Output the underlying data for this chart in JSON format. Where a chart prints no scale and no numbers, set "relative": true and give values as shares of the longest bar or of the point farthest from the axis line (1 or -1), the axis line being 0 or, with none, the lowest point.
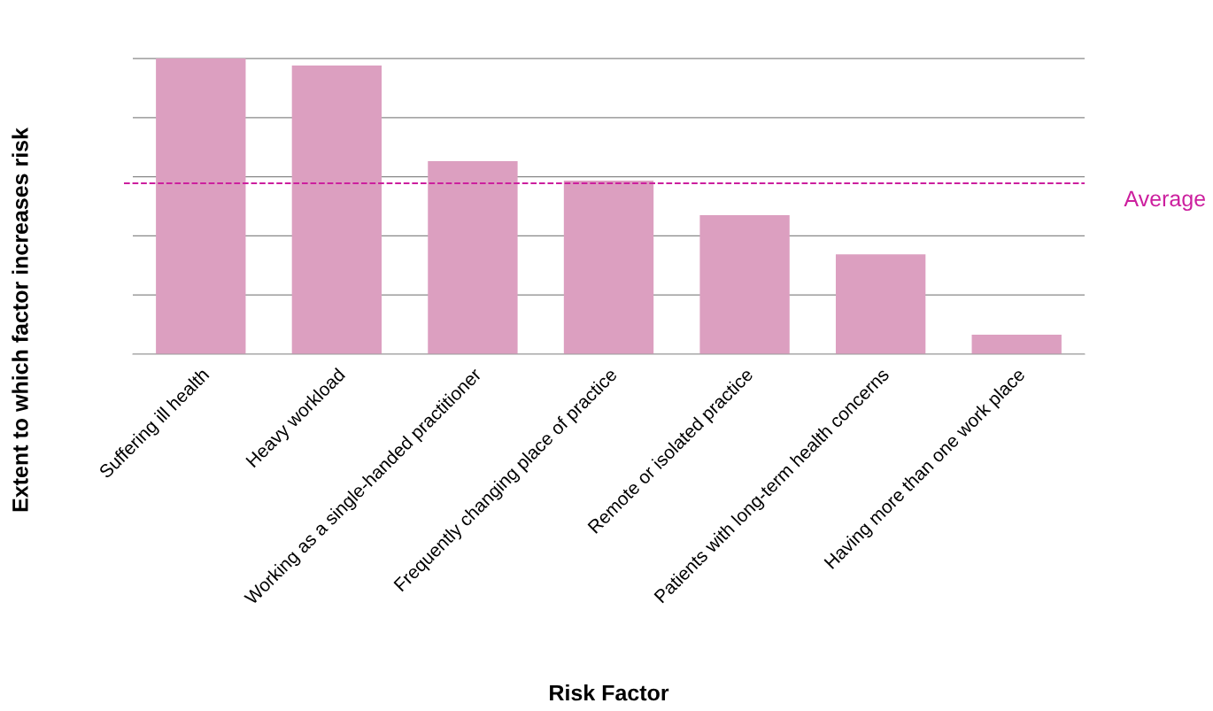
{
  "chart_data": {
    "type": "bar",
    "relative": true,
    "xlabel": "Risk Factor",
    "ylabel": "Extent to which factor increases risk",
    "categories": [
      "Suffering ill health",
      "Heavy workload",
      "Working as a single-handed practitioner",
      "Frequently changing place of practice",
      "Remote or isolated practice",
      "Patients with long-term health concerns",
      "Having more than one work place"
    ],
    "values": [
      1,
      0.976,
      0.653,
      0.587,
      0.47,
      0.338,
      0.066
    ],
    "color": "#dc9fc0",
    "grid": "y",
    "ref_lines": [
      {
        "axis": "y",
        "value": 0.578,
        "label": "Average",
        "color": "#cc1f9e",
        "line_style": "dashed"
      }
    ]
  }
}
